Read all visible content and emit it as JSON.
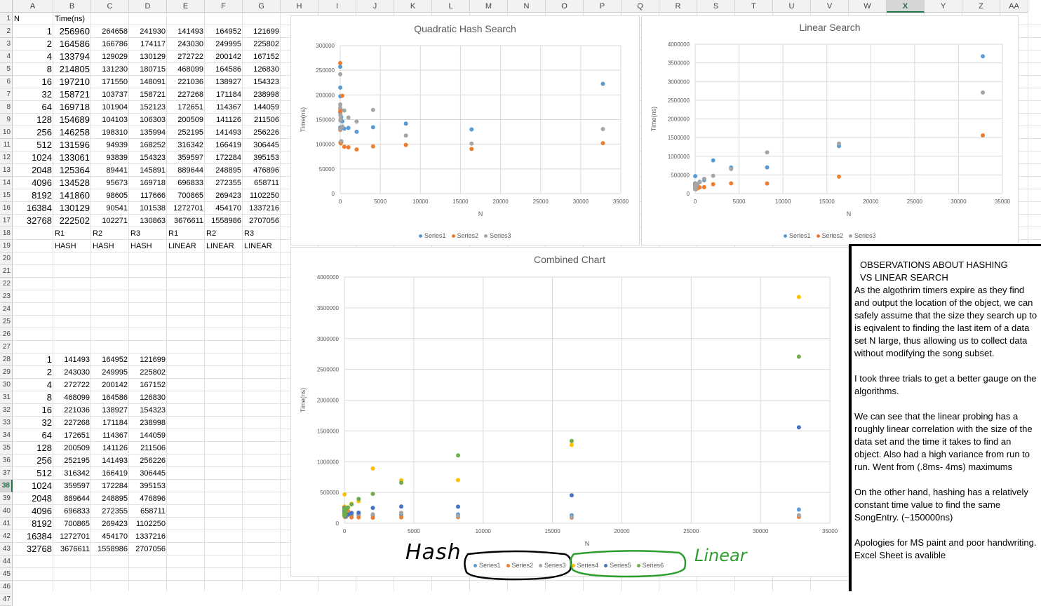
{
  "columns": [
    "A",
    "B",
    "C",
    "D",
    "E",
    "F",
    "G",
    "H",
    "I",
    "J",
    "K",
    "L",
    "M",
    "N",
    "O",
    "P",
    "Q",
    "R",
    "S",
    "T",
    "U",
    "V",
    "W",
    "X",
    "Y",
    "Z",
    "AA"
  ],
  "selected_column": "X",
  "selected_row": 38,
  "rows": [
    1,
    2,
    3,
    4,
    5,
    6,
    7,
    8,
    9,
    10,
    11,
    12,
    13,
    14,
    15,
    16,
    17,
    18,
    19,
    20,
    21,
    22,
    23,
    24,
    25,
    26,
    27,
    28,
    29,
    30,
    31,
    32,
    33,
    34,
    35,
    36,
    37,
    38,
    39,
    40,
    41,
    42,
    43,
    44,
    45,
    46,
    47
  ],
  "table1": {
    "header_n": "N",
    "header_time": "Time(ns)",
    "rows": [
      [
        "1",
        "256960",
        "264658",
        "241930",
        "141493",
        "164952",
        "121699"
      ],
      [
        "2",
        "164586",
        "166786",
        "174117",
        "243030",
        "249995",
        "225802"
      ],
      [
        "4",
        "133794",
        "129029",
        "130129",
        "272722",
        "200142",
        "167152"
      ],
      [
        "8",
        "214805",
        "131230",
        "180715",
        "468099",
        "164586",
        "126830"
      ],
      [
        "16",
        "197210",
        "171550",
        "148091",
        "221036",
        "138927",
        "154323"
      ],
      [
        "32",
        "158721",
        "103737",
        "158721",
        "227268",
        "171184",
        "238998"
      ],
      [
        "64",
        "169718",
        "101904",
        "152123",
        "172651",
        "114367",
        "144059"
      ],
      [
        "128",
        "154689",
        "104103",
        "106303",
        "200509",
        "141126",
        "211506"
      ],
      [
        "256",
        "146258",
        "198310",
        "135994",
        "252195",
        "141493",
        "256226"
      ],
      [
        "512",
        "131596",
        "94939",
        "168252",
        "316342",
        "166419",
        "306445"
      ],
      [
        "1024",
        "133061",
        "93839",
        "154323",
        "359597",
        "172284",
        "395153"
      ],
      [
        "2048",
        "125364",
        "89441",
        "145891",
        "889644",
        "248895",
        "476896"
      ],
      [
        "4096",
        "134528",
        "95673",
        "169718",
        "696833",
        "272355",
        "658711"
      ],
      [
        "8192",
        "141860",
        "98605",
        "117666",
        "700865",
        "269423",
        "1102250"
      ],
      [
        "16384",
        "130129",
        "90541",
        "101538",
        "1272701",
        "454170",
        "1337216"
      ],
      [
        "32768",
        "222502",
        "102271",
        "130863",
        "3676611",
        "1558986",
        "2707056"
      ]
    ],
    "row18": [
      "R1",
      "R2",
      "R3",
      "R1",
      "R2",
      "R3"
    ],
    "row19": [
      "HASH",
      "HASH",
      "HASH",
      "LINEAR",
      "LINEAR",
      "LINEAR"
    ]
  },
  "table2": {
    "rows": [
      [
        "1",
        "141493",
        "164952",
        "121699"
      ],
      [
        "2",
        "243030",
        "249995",
        "225802"
      ],
      [
        "4",
        "272722",
        "200142",
        "167152"
      ],
      [
        "8",
        "468099",
        "164586",
        "126830"
      ],
      [
        "16",
        "221036",
        "138927",
        "154323"
      ],
      [
        "32",
        "227268",
        "171184",
        "238998"
      ],
      [
        "64",
        "172651",
        "114367",
        "144059"
      ],
      [
        "128",
        "200509",
        "141126",
        "211506"
      ],
      [
        "256",
        "252195",
        "141493",
        "256226"
      ],
      [
        "512",
        "316342",
        "166419",
        "306445"
      ],
      [
        "1024",
        "359597",
        "172284",
        "395153"
      ],
      [
        "2048",
        "889644",
        "248895",
        "476896"
      ],
      [
        "4096",
        "696833",
        "272355",
        "658711"
      ],
      [
        "8192",
        "700865",
        "269423",
        "1102250"
      ],
      [
        "16384",
        "1272701",
        "454170",
        "1337216"
      ],
      [
        "32768",
        "3676611",
        "1558986",
        "2707056"
      ]
    ]
  },
  "chart_data": [
    {
      "type": "scatter",
      "title": "Quadratic Hash Search",
      "xlabel": "N",
      "ylabel": "Time(ns)",
      "xlim": [
        0,
        35000
      ],
      "ylim": [
        0,
        300000
      ],
      "xticks": [
        "0",
        "5000",
        "10000",
        "15000",
        "20000",
        "25000",
        "30000",
        "35000"
      ],
      "yticks": [
        "0",
        "50000",
        "100000",
        "150000",
        "200000",
        "250000",
        "300000"
      ],
      "x": [
        1,
        2,
        4,
        8,
        16,
        32,
        64,
        128,
        256,
        512,
        1024,
        2048,
        4096,
        8192,
        16384,
        32768
      ],
      "series": [
        {
          "name": "Series1",
          "color": "#5b9bd5",
          "values": [
            256960,
            164586,
            133794,
            214805,
            197210,
            158721,
            169718,
            154689,
            146258,
            131596,
            133061,
            125364,
            134528,
            141860,
            130129,
            222502
          ]
        },
        {
          "name": "Series2",
          "color": "#ed7d31",
          "values": [
            264658,
            166786,
            129029,
            131230,
            171550,
            103737,
            101904,
            104103,
            198310,
            94939,
            93839,
            89441,
            95673,
            98605,
            90541,
            102271
          ]
        },
        {
          "name": "Series3",
          "color": "#a5a5a5",
          "values": [
            241930,
            174117,
            130129,
            180715,
            148091,
            158721,
            152123,
            106303,
            135994,
            168252,
            154323,
            145891,
            169718,
            117666,
            101538,
            130863
          ]
        }
      ],
      "legend": "bottom"
    },
    {
      "type": "scatter",
      "title": "Linear Search",
      "xlabel": "N",
      "ylabel": "Time(ns)",
      "xlim": [
        0,
        35000
      ],
      "ylim": [
        0,
        4000000
      ],
      "xticks": [
        "0",
        "5000",
        "10000",
        "15000",
        "20000",
        "25000",
        "30000",
        "35000"
      ],
      "yticks": [
        "0",
        "500000",
        "1000000",
        "1500000",
        "2000000",
        "2500000",
        "3000000",
        "3500000",
        "4000000"
      ],
      "x": [
        1,
        2,
        4,
        8,
        16,
        32,
        64,
        128,
        256,
        512,
        1024,
        2048,
        4096,
        8192,
        16384,
        32768
      ],
      "series": [
        {
          "name": "Series1",
          "color": "#5b9bd5",
          "values": [
            141493,
            243030,
            272722,
            468099,
            221036,
            227268,
            172651,
            200509,
            252195,
            316342,
            359597,
            889644,
            696833,
            700865,
            1272701,
            3676611
          ]
        },
        {
          "name": "Series2",
          "color": "#ed7d31",
          "values": [
            164952,
            249995,
            200142,
            164586,
            138927,
            171184,
            114367,
            141126,
            141493,
            166419,
            172284,
            248895,
            272355,
            269423,
            454170,
            1558986
          ]
        },
        {
          "name": "Series3",
          "color": "#a5a5a5",
          "values": [
            121699,
            225802,
            167152,
            126830,
            154323,
            238998,
            144059,
            211506,
            256226,
            306445,
            395153,
            476896,
            658711,
            1102250,
            1337216,
            2707056
          ]
        }
      ],
      "legend": "bottom"
    },
    {
      "type": "scatter",
      "title": "Combined Chart",
      "xlabel": "N",
      "ylabel": "Time(ns)",
      "xlim": [
        0,
        35000
      ],
      "ylim": [
        0,
        4000000
      ],
      "xticks": [
        "0",
        "5000",
        "10000",
        "15000",
        "20000",
        "25000",
        "30000",
        "35000"
      ],
      "yticks": [
        "0",
        "500000",
        "1000000",
        "1500000",
        "2000000",
        "2500000",
        "3000000",
        "3500000",
        "4000000"
      ],
      "x": [
        1,
        2,
        4,
        8,
        16,
        32,
        64,
        128,
        256,
        512,
        1024,
        2048,
        4096,
        8192,
        16384,
        32768
      ],
      "series": [
        {
          "name": "Series1",
          "color": "#5b9bd5",
          "values": [
            256960,
            164586,
            133794,
            214805,
            197210,
            158721,
            169718,
            154689,
            146258,
            131596,
            133061,
            125364,
            134528,
            141860,
            130129,
            222502
          ]
        },
        {
          "name": "Series2",
          "color": "#ed7d31",
          "values": [
            264658,
            166786,
            129029,
            131230,
            171550,
            103737,
            101904,
            104103,
            198310,
            94939,
            93839,
            89441,
            95673,
            98605,
            90541,
            102271
          ]
        },
        {
          "name": "Series3",
          "color": "#a5a5a5",
          "values": [
            241930,
            174117,
            130129,
            180715,
            148091,
            158721,
            152123,
            106303,
            135994,
            168252,
            154323,
            145891,
            169718,
            117666,
            101538,
            130863
          ]
        },
        {
          "name": "Series4",
          "color": "#ffc000",
          "values": [
            141493,
            243030,
            272722,
            468099,
            221036,
            227268,
            172651,
            200509,
            252195,
            316342,
            359597,
            889644,
            696833,
            700865,
            1272701,
            3676611
          ]
        },
        {
          "name": "Series5",
          "color": "#4472c4",
          "values": [
            164952,
            249995,
            200142,
            164586,
            138927,
            171184,
            114367,
            141126,
            141493,
            166419,
            172284,
            248895,
            272355,
            269423,
            454170,
            1558986
          ]
        },
        {
          "name": "Series6",
          "color": "#70ad47",
          "values": [
            121699,
            225802,
            167152,
            126830,
            154323,
            238998,
            144059,
            211506,
            256226,
            306445,
            395153,
            476896,
            658711,
            1102250,
            1337216,
            2707056
          ]
        }
      ],
      "legend": "bottom"
    }
  ],
  "annotations": {
    "hash_label": "Hash",
    "linear_label": "Linear"
  },
  "observations": {
    "title_line1": "OBSERVATIONS ABOUT HASHING",
    "title_line2": "VS LINEAR SEARCH",
    "p1": "As the algothrim timers expire as they find and output the location of the object, we can safely assume that the size they search up to is eqivalent to finding the last item of a data set N large, thus allowing us to collect data without modifying the song subset.",
    "p2": "I took three trials to get a better gauge on the algorithms.",
    "p3": "We can see that the linear probing has a roughly linear correlation with the size of the data set and the time it takes to find an object. Also had a high variance from run to run. Went from (.8ms- 4ms) maximums",
    "p4": "On the other hand, hashing has a relatively constant time value to find the same SongEntry. (~150000ns)",
    "p5": "Apologies for MS paint and poor handwriting. Excel Sheet is avalible"
  }
}
